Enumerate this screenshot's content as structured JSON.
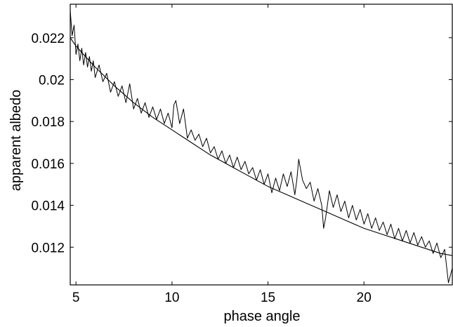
{
  "chart_data": {
    "type": "line",
    "title": "",
    "xlabel": "phase angle",
    "ylabel": "apparent albedo",
    "xlim": [
      4.7,
      24.6
    ],
    "ylim": [
      0.0102,
      0.0236
    ],
    "xticks": [
      5,
      10,
      15,
      20
    ],
    "xtick_labels": [
      "5",
      "10",
      "15",
      "20"
    ],
    "yticks": [
      0.012,
      0.014,
      0.016,
      0.018,
      0.02,
      0.022
    ],
    "ytick_labels": [
      "0.012",
      "0.014",
      "0.016",
      "0.018",
      "0.02",
      "0.022"
    ],
    "grid": false,
    "legend": "none",
    "series": [
      {
        "kind": "measured",
        "color": "#000000",
        "x": [
          4.7,
          4.8,
          4.9,
          5.0,
          5.1,
          5.2,
          5.3,
          5.4,
          5.5,
          5.6,
          5.7,
          5.8,
          5.9,
          6.0,
          6.2,
          6.4,
          6.6,
          6.8,
          7.0,
          7.2,
          7.4,
          7.6,
          7.8,
          8.0,
          8.2,
          8.4,
          8.6,
          8.8,
          9.0,
          9.2,
          9.4,
          9.6,
          9.8,
          10.0,
          10.1,
          10.2,
          10.4,
          10.6,
          10.8,
          11.0,
          11.2,
          11.4,
          11.6,
          11.8,
          12.0,
          12.2,
          12.4,
          12.6,
          12.8,
          13.0,
          13.2,
          13.4,
          13.6,
          13.8,
          14.0,
          14.2,
          14.4,
          14.6,
          14.8,
          15.0,
          15.2,
          15.4,
          15.6,
          15.8,
          16.0,
          16.2,
          16.4,
          16.5,
          16.6,
          16.8,
          17.0,
          17.2,
          17.4,
          17.6,
          17.8,
          17.9,
          18.0,
          18.2,
          18.4,
          18.6,
          18.8,
          19.0,
          19.2,
          19.4,
          19.6,
          19.8,
          20.0,
          20.2,
          20.4,
          20.6,
          20.8,
          21.0,
          21.2,
          21.4,
          21.6,
          21.8,
          22.0,
          22.2,
          22.4,
          22.6,
          22.8,
          23.0,
          23.2,
          23.4,
          23.6,
          23.8,
          24.0,
          24.2,
          24.4,
          24.6
        ],
        "y": [
          0.0233,
          0.0221,
          0.0226,
          0.0212,
          0.0217,
          0.0209,
          0.0215,
          0.0207,
          0.0213,
          0.0206,
          0.0211,
          0.0204,
          0.0209,
          0.0201,
          0.0207,
          0.0199,
          0.0203,
          0.0194,
          0.0199,
          0.0192,
          0.0197,
          0.0189,
          0.0198,
          0.0186,
          0.0191,
          0.0184,
          0.0189,
          0.0182,
          0.0187,
          0.0181,
          0.0186,
          0.0179,
          0.0184,
          0.0177,
          0.0188,
          0.019,
          0.0179,
          0.0186,
          0.0172,
          0.0176,
          0.0171,
          0.0174,
          0.0168,
          0.0172,
          0.0165,
          0.0168,
          0.0162,
          0.0166,
          0.016,
          0.0164,
          0.0158,
          0.0163,
          0.0157,
          0.0161,
          0.0155,
          0.0158,
          0.0152,
          0.0157,
          0.015,
          0.0155,
          0.0146,
          0.0153,
          0.0147,
          0.0155,
          0.0149,
          0.0156,
          0.0145,
          0.0152,
          0.0162,
          0.0152,
          0.0148,
          0.0151,
          0.0142,
          0.0148,
          0.014,
          0.0129,
          0.0134,
          0.0147,
          0.0139,
          0.0145,
          0.0137,
          0.0142,
          0.0134,
          0.014,
          0.0133,
          0.0138,
          0.0131,
          0.0136,
          0.0129,
          0.0134,
          0.0128,
          0.0132,
          0.0126,
          0.0131,
          0.0124,
          0.0129,
          0.0123,
          0.0128,
          0.0122,
          0.0127,
          0.0121,
          0.0125,
          0.012,
          0.0123,
          0.0117,
          0.0122,
          0.0115,
          0.0119,
          0.0103,
          0.011
        ]
      },
      {
        "kind": "fit",
        "color": "#000000",
        "x": [
          4.7,
          5,
          6,
          7,
          8,
          9,
          10,
          11,
          12,
          13,
          14,
          15,
          16,
          17,
          18,
          19,
          20,
          21,
          22,
          23,
          24,
          24.6
        ],
        "y": [
          0.022,
          0.0216,
          0.0206,
          0.0197,
          0.0189,
          0.0182,
          0.0176,
          0.017,
          0.0164,
          0.0159,
          0.0154,
          0.0149,
          0.0145,
          0.0141,
          0.0137,
          0.0133,
          0.0129,
          0.0126,
          0.0123,
          0.012,
          0.0117,
          0.0116
        ]
      }
    ]
  }
}
